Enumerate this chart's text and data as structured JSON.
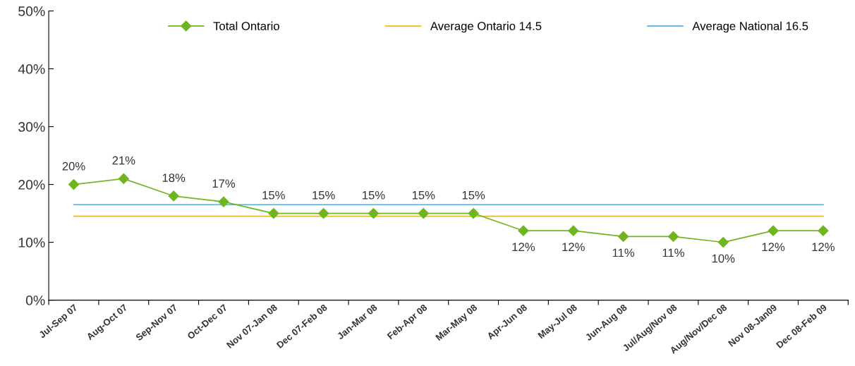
{
  "chart_data": {
    "type": "line",
    "categories": [
      "Jul-Sep 07",
      "Aug-Oct 07",
      "Sep-Nov 07",
      "Oct-Dec 07",
      "Nov 07-Jan 08",
      "Dec 07-Feb 08",
      "Jan-Mar 08",
      "Feb-Apr 08",
      "Mar-May 08",
      "Apr-Jun 08",
      "May-Jul 08",
      "Jun-Aug 08",
      "Jul/Aug/Nov 08",
      "Aug/Nov/Dec 08",
      "Nov 08-Jan09",
      "Dec 08-Feb 09"
    ],
    "series": [
      {
        "name": "Total Ontario",
        "color": "#6fb51f",
        "marker": "diamond",
        "values": [
          20,
          21,
          18,
          17,
          15,
          15,
          15,
          15,
          15,
          12,
          12,
          11,
          11,
          10,
          12,
          12
        ],
        "value_labels": [
          "20%",
          "21%",
          "18%",
          "17%",
          "15%",
          "15%",
          "15%",
          "15%",
          "15%",
          "12%",
          "12%",
          "11%",
          "11%",
          "10%",
          "12%",
          "12%"
        ]
      },
      {
        "name": "Average Ontario 14.5",
        "color": "#e8b830",
        "values": [
          14.5,
          14.5,
          14.5,
          14.5,
          14.5,
          14.5,
          14.5,
          14.5,
          14.5,
          14.5,
          14.5,
          14.5,
          14.5,
          14.5,
          14.5,
          14.5
        ]
      },
      {
        "name": "Average National 16.5",
        "color": "#5aaee0",
        "values": [
          16.5,
          16.5,
          16.5,
          16.5,
          16.5,
          16.5,
          16.5,
          16.5,
          16.5,
          16.5,
          16.5,
          16.5,
          16.5,
          16.5,
          16.5,
          16.5
        ]
      }
    ],
    "ylim": [
      0,
      50
    ],
    "yticks": [
      {
        "value": 0,
        "label": "0%"
      },
      {
        "value": 10,
        "label": "10%"
      },
      {
        "value": 20,
        "label": "20%"
      },
      {
        "value": 30,
        "label": "30%"
      },
      {
        "value": 40,
        "label": "40%"
      },
      {
        "value": 50,
        "label": "50%"
      }
    ],
    "grid": false,
    "legend": "top"
  }
}
